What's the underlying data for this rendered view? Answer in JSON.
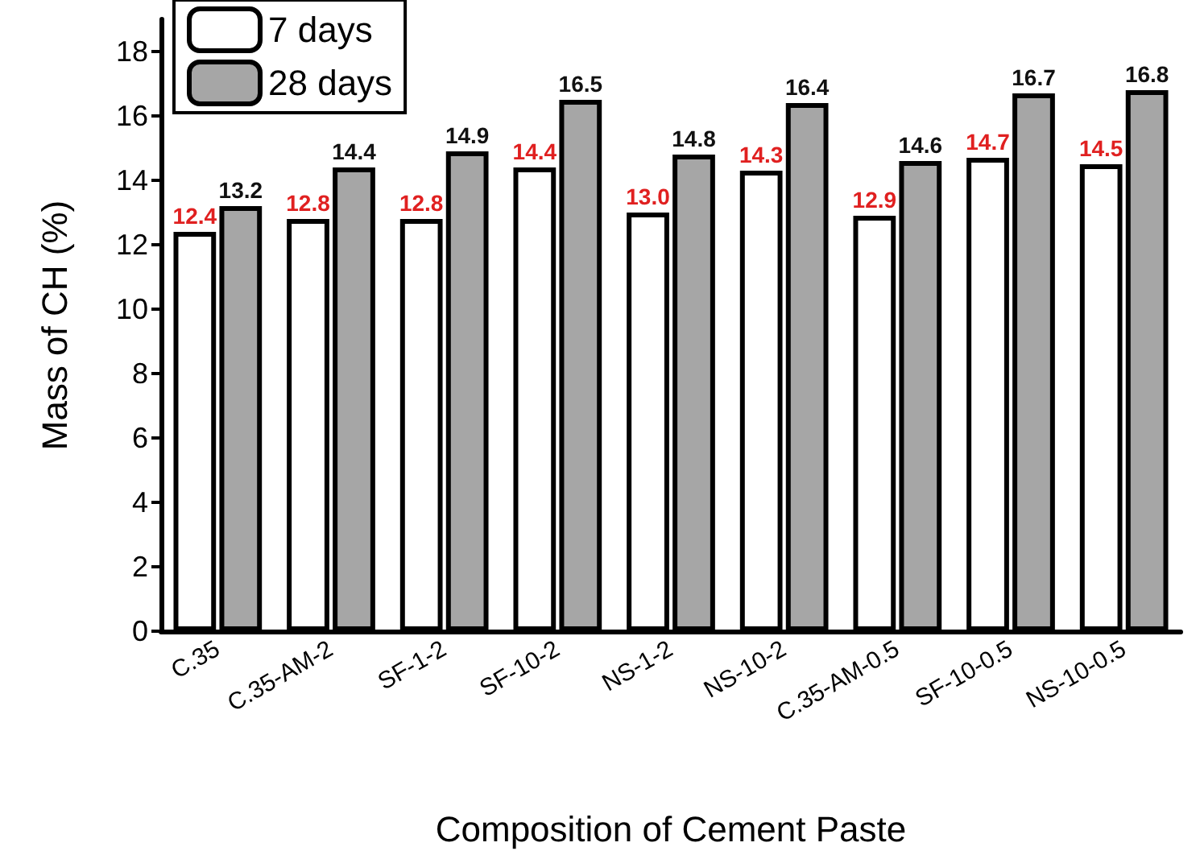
{
  "chart_data": {
    "type": "bar",
    "xlabel": "Composition of Cement Paste",
    "ylabel": "Mass of CH (%)",
    "categories": [
      "C.35",
      "C.35-AM-2",
      "SF-1-2",
      "SF-10-2",
      "NS-1-2",
      "NS-10-2",
      "C.35-AM-0.5",
      "SF-10-0.5",
      "NS-10-0.5"
    ],
    "series": [
      {
        "name": "7 days",
        "color": "#ffffff",
        "values": [
          12.4,
          12.8,
          12.8,
          14.4,
          13.0,
          14.3,
          12.9,
          14.7,
          14.5
        ],
        "value_labels": [
          "12.4",
          "12.8",
          "12.8",
          "14.4",
          "13.0",
          "14.3",
          "12.9",
          "14.7",
          "14.5"
        ]
      },
      {
        "name": "28 days",
        "color": "#a6a6a6",
        "values": [
          13.2,
          14.4,
          14.9,
          16.5,
          14.8,
          16.4,
          14.6,
          16.7,
          16.8
        ],
        "value_labels": [
          "13.2",
          "14.4",
          "14.9",
          "16.5",
          "14.8",
          "16.4",
          "14.6",
          "16.7",
          "16.8"
        ]
      }
    ],
    "ylim": [
      0,
      19
    ],
    "yticks": [
      0,
      2,
      4,
      6,
      8,
      10,
      12,
      14,
      16,
      18
    ],
    "grid": false,
    "legend": "top left"
  }
}
